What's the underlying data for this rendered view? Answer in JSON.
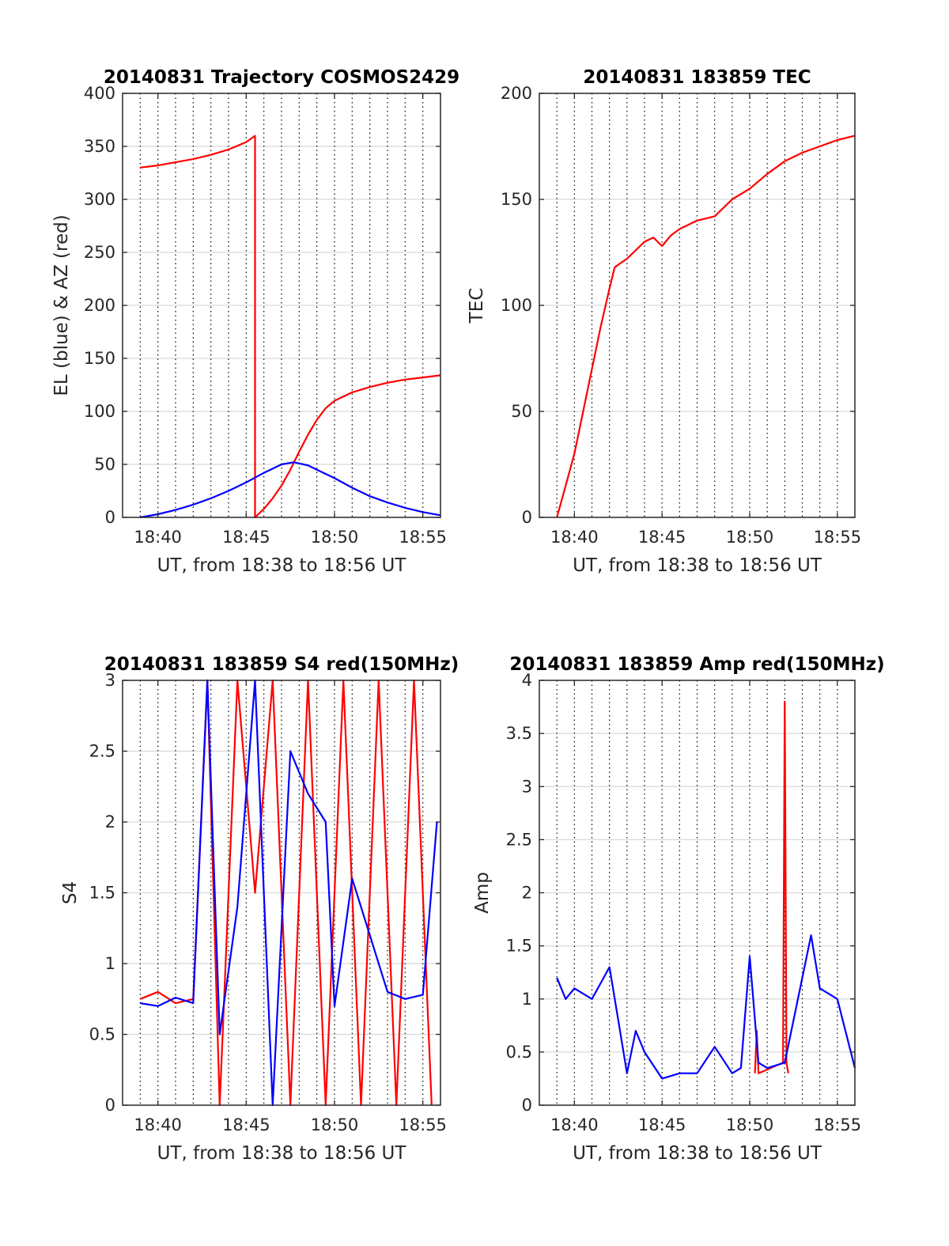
{
  "colors": {
    "red": "#ff0000",
    "blue": "#0000ff",
    "axis": "#262626",
    "grid": "#d9d9d9"
  },
  "chart_data": [
    {
      "id": "trajectory",
      "type": "line",
      "title": "20140831 Trajectory COSMOS2429",
      "xlabel": "UT, from 18:38 to 18:56 UT",
      "ylabel": "EL (blue) & AZ (red)",
      "xlim": [
        "18:38",
        "18:56"
      ],
      "ylim": [
        0,
        400
      ],
      "xticks": [
        "18:40",
        "18:45",
        "18:50",
        "18:55"
      ],
      "yticks": [
        0,
        50,
        100,
        150,
        200,
        250,
        300,
        350,
        400
      ],
      "grid": true,
      "series": [
        {
          "color": "red",
          "x": [
            "18:39",
            "18:40",
            "18:41",
            "18:42",
            "18:43",
            "18:44",
            "18:45",
            "18:45.5",
            "18:45.5",
            "18:46",
            "18:46.5",
            "18:47",
            "18:47.5",
            "18:48",
            "18:48.5",
            "18:49",
            "18:49.5",
            "18:50",
            "18:51",
            "18:52",
            "18:53",
            "18:54",
            "18:55",
            "18:56"
          ],
          "y": [
            330,
            332,
            335,
            338,
            342,
            347,
            354,
            360,
            0,
            8,
            18,
            30,
            45,
            62,
            78,
            92,
            103,
            110,
            118,
            123,
            127,
            130,
            132,
            134
          ]
        },
        {
          "color": "blue",
          "x": [
            "18:39",
            "18:40",
            "18:41",
            "18:42",
            "18:43",
            "18:44",
            "18:45",
            "18:46",
            "18:47",
            "18:47.7",
            "18:48.5",
            "18:49",
            "18:50",
            "18:51",
            "18:52",
            "18:53",
            "18:54",
            "18:55",
            "18:56"
          ],
          "y": [
            0,
            3,
            7,
            12,
            18,
            25,
            33,
            42,
            50,
            52,
            49,
            45,
            37,
            28,
            20,
            14,
            9,
            5,
            2
          ]
        }
      ]
    },
    {
      "id": "tec",
      "type": "line",
      "title": "20140831 183859 TEC",
      "xlabel": "UT, from 18:38 to 18:56 UT",
      "ylabel": "TEC",
      "xlim": [
        "18:38",
        "18:56"
      ],
      "ylim": [
        0,
        200
      ],
      "xticks": [
        "18:40",
        "18:45",
        "18:50",
        "18:55"
      ],
      "yticks": [
        0,
        50,
        100,
        150,
        200
      ],
      "grid": true,
      "series": [
        {
          "color": "red",
          "x": [
            "18:39",
            "18:39.5",
            "18:40",
            "18:40.5",
            "18:41",
            "18:41.5",
            "18:42",
            "18:42.3",
            "18:43",
            "18:43.5",
            "18:44",
            "18:44.5",
            "18:45",
            "18:45.5",
            "18:46",
            "18:47",
            "18:48",
            "18:49",
            "18:50",
            "18:51",
            "18:52",
            "18:53",
            "18:54",
            "18:55",
            "18:56"
          ],
          "y": [
            0,
            15,
            30,
            50,
            70,
            90,
            108,
            118,
            122,
            126,
            130,
            132,
            128,
            133,
            136,
            140,
            142,
            150,
            155,
            162,
            168,
            172,
            175,
            178,
            180
          ]
        }
      ]
    },
    {
      "id": "s4",
      "type": "line",
      "title": "20140831 183859 S4 red(150MHz)",
      "xlabel": "UT, from 18:38 to 18:56 UT",
      "ylabel": "S4",
      "xlim": [
        "18:38",
        "18:56"
      ],
      "ylim": [
        0,
        3
      ],
      "xticks": [
        "18:40",
        "18:45",
        "18:50",
        "18:55"
      ],
      "yticks": [
        0,
        0.5,
        1,
        1.5,
        2,
        2.5,
        3
      ],
      "grid": true,
      "series": [
        {
          "color": "red",
          "x": [
            "18:39",
            "18:40",
            "18:41",
            "18:42",
            "18:42.8",
            "18:43.5",
            "18:44.5",
            "18:45.5",
            "18:46.5",
            "18:47.5",
            "18:48.5",
            "18:49.5",
            "18:50.5",
            "18:51.5",
            "18:52.5",
            "18:53.5",
            "18:54.5",
            "18:55.5"
          ],
          "y": [
            0.75,
            0.8,
            0.72,
            0.75,
            3,
            0,
            3,
            1.5,
            3,
            0,
            3,
            0,
            3,
            0,
            3,
            0,
            3,
            0
          ]
        },
        {
          "color": "blue",
          "x": [
            "18:39",
            "18:40",
            "18:41",
            "18:42",
            "18:42.8",
            "18:43.5",
            "18:44.5",
            "18:45.5",
            "18:46.5",
            "18:47.5",
            "18:48.5",
            "18:49.5",
            "18:50",
            "18:51",
            "18:52",
            "18:53",
            "18:54",
            "18:55",
            "18:55.8"
          ],
          "y": [
            0.72,
            0.7,
            0.76,
            0.72,
            3,
            0.5,
            1.4,
            3,
            0,
            2.5,
            2.2,
            2,
            0.7,
            1.6,
            1.2,
            0.8,
            0.75,
            0.78,
            2
          ]
        }
      ]
    },
    {
      "id": "amp",
      "type": "line",
      "title": "20140831 183859 Amp red(150MHz)",
      "xlabel": "UT, from 18:38 to 18:56 UT",
      "ylabel": "Amp",
      "xlim": [
        "18:38",
        "18:56"
      ],
      "ylim": [
        0,
        4
      ],
      "xticks": [
        "18:40",
        "18:45",
        "18:50",
        "18:55"
      ],
      "yticks": [
        0,
        0.5,
        1,
        1.5,
        2,
        2.5,
        3,
        3.5,
        4
      ],
      "grid": true,
      "series": [
        {
          "color": "red",
          "x": [
            "18:50.3",
            "18:50.4",
            "18:50.5",
            "18:51.9",
            "18:52",
            "18:52.1",
            "18:52.2"
          ],
          "y": [
            0.3,
            0.7,
            0.3,
            0.4,
            3.8,
            0.4,
            0.3
          ]
        },
        {
          "color": "blue",
          "x": [
            "18:39",
            "18:39.5",
            "18:40",
            "18:41",
            "18:42",
            "18:42.5",
            "18:43",
            "18:43.5",
            "18:44",
            "18:45",
            "18:46",
            "18:47",
            "18:48",
            "18:49",
            "18:49.5",
            "18:50",
            "18:50.5",
            "18:51",
            "18:52",
            "18:53",
            "18:53.5",
            "18:54",
            "18:55",
            "18:56"
          ],
          "y": [
            1.2,
            1,
            1.1,
            1,
            1.3,
            0.8,
            0.3,
            0.7,
            0.5,
            0.25,
            0.3,
            0.3,
            0.55,
            0.3,
            0.35,
            1.4,
            0.4,
            0.35,
            0.4,
            1.2,
            1.6,
            1.1,
            1,
            0.35
          ]
        }
      ]
    }
  ]
}
